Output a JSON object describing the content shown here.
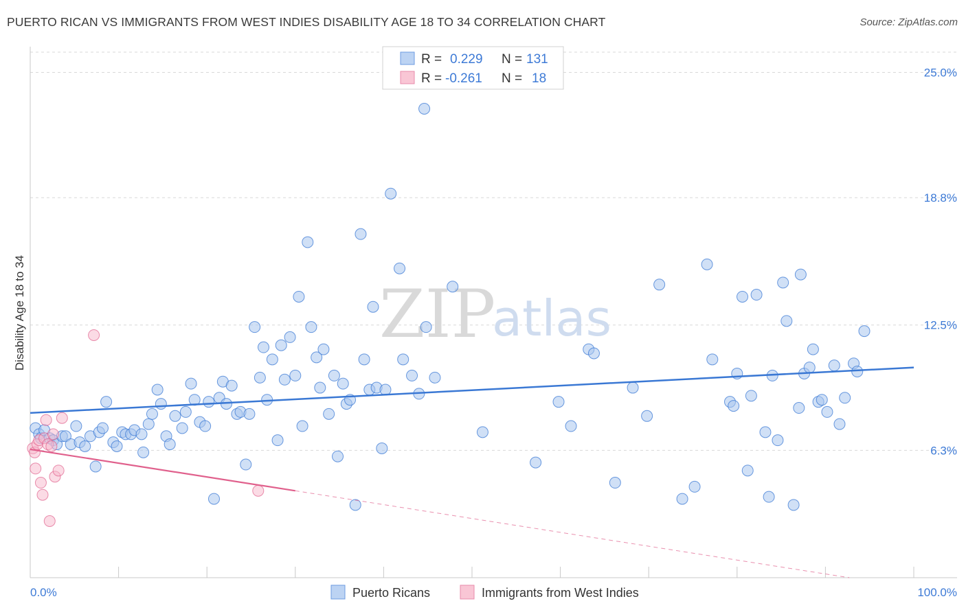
{
  "title": "PUERTO RICAN VS IMMIGRANTS FROM WEST INDIES DISABILITY AGE 18 TO 34 CORRELATION CHART",
  "source": "Source: ZipAtlas.com",
  "watermark": {
    "zip": "ZIP",
    "atlas": "atlas"
  },
  "colors": {
    "blue": "#3a78d4",
    "blue_fill": "#a9c6ee",
    "pink": "#e0608c",
    "pink_fill": "#f7b8cb",
    "tick_label": "#3d7ad6",
    "grid": "#d8d8d8"
  },
  "legend": {
    "rows": [
      {
        "r_label": "R =",
        "r_value": "0.229",
        "n_label": "N =",
        "n_value": "131"
      },
      {
        "r_label": "R =",
        "r_value": "-0.261",
        "n_label": "N =",
        "n_value": "18"
      }
    ]
  },
  "chart_data": {
    "type": "scatter",
    "title": "PUERTO RICAN VS IMMIGRANTS FROM WEST INDIES DISABILITY AGE 18 TO 34 CORRELATION CHART",
    "xlabel": "",
    "ylabel": "Disability Age 18 to 34",
    "xlim": [
      0,
      100
    ],
    "ylim": [
      0,
      26
    ],
    "x_tick_labels": [
      "0.0%",
      "100.0%"
    ],
    "y_ticks": [
      6.3,
      12.5,
      18.8,
      25.0
    ],
    "y_tick_labels": [
      "6.3%",
      "12.5%",
      "18.8%",
      "25.0%"
    ],
    "grid": "horizontal dashed",
    "legend_position": "bottom-center",
    "series": [
      {
        "name": "Puerto Ricans",
        "color": "#3a78d4",
        "trend": {
          "x": [
            0,
            100
          ],
          "y": [
            8.15,
            10.4
          ]
        },
        "points": [
          [
            0.6,
            7.4
          ],
          [
            1.0,
            7.1
          ],
          [
            1.2,
            6.9
          ],
          [
            1.6,
            7.3
          ],
          [
            2.2,
            6.9
          ],
          [
            2.6,
            6.8
          ],
          [
            3.0,
            6.6
          ],
          [
            3.6,
            7.0
          ],
          [
            4.0,
            7.0
          ],
          [
            4.6,
            6.6
          ],
          [
            5.2,
            7.5
          ],
          [
            5.6,
            6.7
          ],
          [
            6.2,
            6.5
          ],
          [
            6.8,
            7.0
          ],
          [
            7.4,
            5.5
          ],
          [
            7.8,
            7.2
          ],
          [
            8.2,
            7.4
          ],
          [
            8.6,
            8.7
          ],
          [
            9.4,
            6.7
          ],
          [
            9.8,
            6.5
          ],
          [
            10.4,
            7.2
          ],
          [
            10.8,
            7.1
          ],
          [
            11.4,
            7.1
          ],
          [
            11.8,
            7.3
          ],
          [
            12.6,
            7.1
          ],
          [
            12.8,
            6.2
          ],
          [
            13.4,
            7.6
          ],
          [
            13.8,
            8.1
          ],
          [
            14.4,
            9.3
          ],
          [
            14.8,
            8.6
          ],
          [
            15.4,
            7.0
          ],
          [
            15.8,
            6.6
          ],
          [
            16.4,
            8.0
          ],
          [
            17.2,
            7.4
          ],
          [
            17.6,
            8.2
          ],
          [
            18.2,
            9.6
          ],
          [
            18.6,
            8.8
          ],
          [
            19.2,
            7.7
          ],
          [
            19.8,
            7.5
          ],
          [
            20.2,
            8.7
          ],
          [
            20.8,
            3.9
          ],
          [
            21.4,
            8.9
          ],
          [
            21.8,
            9.7
          ],
          [
            22.2,
            8.6
          ],
          [
            22.8,
            9.5
          ],
          [
            23.4,
            8.1
          ],
          [
            23.8,
            8.2
          ],
          [
            24.4,
            5.6
          ],
          [
            24.8,
            8.1
          ],
          [
            25.4,
            12.4
          ],
          [
            26.0,
            9.9
          ],
          [
            26.4,
            11.4
          ],
          [
            26.8,
            8.8
          ],
          [
            27.4,
            10.8
          ],
          [
            28.0,
            6.8
          ],
          [
            28.4,
            11.5
          ],
          [
            28.8,
            9.8
          ],
          [
            29.4,
            11.9
          ],
          [
            30.0,
            10.0
          ],
          [
            30.4,
            13.9
          ],
          [
            30.8,
            7.5
          ],
          [
            31.4,
            16.6
          ],
          [
            31.8,
            12.4
          ],
          [
            32.4,
            10.9
          ],
          [
            32.8,
            9.4
          ],
          [
            33.2,
            11.3
          ],
          [
            33.8,
            8.1
          ],
          [
            34.4,
            10.0
          ],
          [
            34.8,
            6.0
          ],
          [
            35.4,
            9.6
          ],
          [
            35.8,
            8.6
          ],
          [
            36.2,
            8.8
          ],
          [
            36.8,
            3.6
          ],
          [
            37.4,
            17.0
          ],
          [
            37.8,
            10.8
          ],
          [
            38.4,
            9.3
          ],
          [
            38.8,
            13.4
          ],
          [
            39.2,
            9.4
          ],
          [
            39.8,
            6.4
          ],
          [
            40.2,
            9.3
          ],
          [
            40.8,
            19.0
          ],
          [
            41.8,
            15.3
          ],
          [
            42.2,
            10.8
          ],
          [
            43.2,
            10.0
          ],
          [
            44.0,
            9.1
          ],
          [
            44.6,
            23.2
          ],
          [
            44.8,
            12.4
          ],
          [
            45.8,
            9.9
          ],
          [
            47.8,
            14.4
          ],
          [
            51.2,
            7.2
          ],
          [
            57.2,
            5.7
          ],
          [
            59.8,
            8.7
          ],
          [
            61.2,
            7.5
          ],
          [
            63.2,
            11.3
          ],
          [
            63.8,
            11.1
          ],
          [
            66.2,
            4.7
          ],
          [
            68.2,
            9.4
          ],
          [
            69.8,
            8.0
          ],
          [
            71.2,
            14.5
          ],
          [
            73.8,
            3.9
          ],
          [
            75.2,
            4.5
          ],
          [
            76.6,
            15.5
          ],
          [
            77.2,
            10.8
          ],
          [
            79.2,
            8.7
          ],
          [
            79.6,
            8.5
          ],
          [
            80.0,
            10.1
          ],
          [
            80.6,
            13.9
          ],
          [
            81.2,
            5.3
          ],
          [
            81.6,
            9.0
          ],
          [
            82.2,
            14.0
          ],
          [
            83.2,
            7.2
          ],
          [
            83.6,
            4.0
          ],
          [
            84.0,
            10.0
          ],
          [
            84.6,
            6.8
          ],
          [
            85.2,
            14.6
          ],
          [
            85.6,
            12.7
          ],
          [
            86.4,
            3.6
          ],
          [
            87.0,
            8.4
          ],
          [
            87.2,
            15.0
          ],
          [
            87.6,
            10.1
          ],
          [
            88.2,
            10.4
          ],
          [
            88.6,
            11.3
          ],
          [
            89.2,
            8.7
          ],
          [
            89.6,
            8.8
          ],
          [
            90.2,
            8.2
          ],
          [
            91.0,
            10.5
          ],
          [
            91.6,
            7.6
          ],
          [
            92.2,
            8.9
          ],
          [
            93.2,
            10.6
          ],
          [
            93.6,
            10.2
          ],
          [
            94.4,
            12.2
          ]
        ]
      },
      {
        "name": "Immigrants from West Indies",
        "color": "#e0608c",
        "trend": {
          "x": [
            0,
            30
          ],
          "y": [
            6.35,
            4.3
          ]
        },
        "trend_dashed": {
          "x": [
            30,
            100
          ],
          "y": [
            4.3,
            -0.5
          ]
        },
        "points": [
          [
            0.3,
            6.4
          ],
          [
            0.5,
            6.2
          ],
          [
            0.6,
            5.4
          ],
          [
            0.8,
            6.6
          ],
          [
            1.0,
            6.8
          ],
          [
            1.2,
            4.7
          ],
          [
            1.4,
            4.1
          ],
          [
            1.6,
            6.9
          ],
          [
            1.8,
            7.8
          ],
          [
            2.0,
            6.6
          ],
          [
            2.2,
            2.8
          ],
          [
            2.4,
            6.5
          ],
          [
            2.6,
            7.1
          ],
          [
            2.8,
            5.0
          ],
          [
            3.2,
            5.3
          ],
          [
            3.6,
            7.9
          ],
          [
            7.2,
            12.0
          ],
          [
            25.8,
            4.3
          ]
        ]
      }
    ]
  }
}
